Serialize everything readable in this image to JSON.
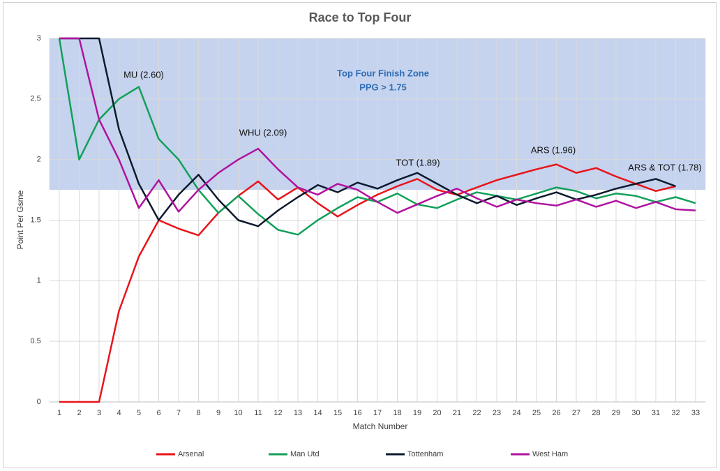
{
  "chart_data": {
    "type": "line",
    "title": "Race to Top Four",
    "x_label": "Match Number",
    "y_label": "Point Per Gsme",
    "categories": [
      1,
      2,
      3,
      4,
      5,
      6,
      7,
      8,
      9,
      10,
      11,
      12,
      13,
      14,
      15,
      16,
      17,
      18,
      19,
      20,
      21,
      22,
      23,
      24,
      25,
      26,
      27,
      28,
      29,
      30,
      31,
      32,
      33
    ],
    "ylim": [
      0,
      3
    ],
    "yticks": [
      0,
      0.5,
      1,
      1.5,
      2,
      2.5,
      3
    ],
    "grid": true,
    "legend": "bottom",
    "zone": {
      "from": 1.75,
      "to": 3,
      "color": "#c5d3ee",
      "lines": [
        "Top Four Finish Zone",
        "PPG > 1.75"
      ]
    },
    "annotations": [
      "MU (2.60)",
      "WHU (2.09)",
      "TOT (1.89)",
      "ARS (1.96)",
      "ARS & TOT (1.78)"
    ],
    "series": [
      {
        "name": "Arsenal",
        "color": "#e8141a",
        "values": [
          0,
          0,
          0,
          0.75,
          1.2,
          1.5,
          1.43,
          1.375,
          1.56,
          1.7,
          1.82,
          1.67,
          1.77,
          1.64,
          1.53,
          1.625,
          1.71,
          1.78,
          1.84,
          1.75,
          1.71,
          1.77,
          1.83,
          1.875,
          1.92,
          1.96,
          1.89,
          1.93,
          1.86,
          1.8,
          1.74,
          1.78,
          null
        ]
      },
      {
        "name": "Man Utd",
        "color": "#12a05a",
        "values": [
          3,
          2,
          2.33,
          2.5,
          2.6,
          2.17,
          2,
          1.75,
          1.56,
          1.7,
          1.55,
          1.42,
          1.38,
          1.5,
          1.6,
          1.69,
          1.65,
          1.72,
          1.63,
          1.6,
          1.67,
          1.73,
          1.7,
          1.67,
          1.72,
          1.77,
          1.74,
          1.68,
          1.72,
          1.7,
          1.65,
          1.69,
          1.64
        ]
      },
      {
        "name": "Tottenham",
        "color": "#0d1a2e",
        "values": [
          3,
          3,
          3,
          2.25,
          1.8,
          1.5,
          1.71,
          1.875,
          1.67,
          1.5,
          1.45,
          1.58,
          1.69,
          1.79,
          1.73,
          1.81,
          1.76,
          1.83,
          1.89,
          1.8,
          1.71,
          1.64,
          1.7,
          1.625,
          1.68,
          1.73,
          1.67,
          1.71,
          1.76,
          1.8,
          1.84,
          1.78,
          null
        ]
      },
      {
        "name": "West Ham",
        "color": "#b0139e",
        "values": [
          3,
          3,
          2.33,
          2,
          1.6,
          1.83,
          1.57,
          1.75,
          1.89,
          2,
          2.09,
          1.92,
          1.77,
          1.71,
          1.8,
          1.75,
          1.65,
          1.56,
          1.63,
          1.7,
          1.76,
          1.68,
          1.61,
          1.67,
          1.64,
          1.62,
          1.67,
          1.61,
          1.66,
          1.6,
          1.65,
          1.59,
          1.58
        ]
      }
    ]
  }
}
